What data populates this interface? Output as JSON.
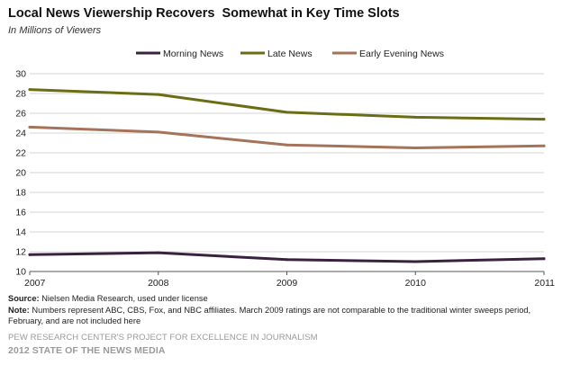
{
  "title": "Local News Viewership Recovers  Somewhat in Key Time Slots",
  "subtitle": "In Millions of Viewers",
  "notes": {
    "source_label": "Source:",
    "source_text": " Nielsen Media Research, used under license",
    "note_label": "Note:",
    "note_text": " Numbers represent ABC, CBS, Fox, and NBC affiliates. March 2009 ratings are not comparable to the traditional winter sweeps period, February, and are not included here"
  },
  "credits": {
    "line1": "PEW RESEARCH CENTER'S PROJECT FOR EXCELLENCE IN JOURNALISM",
    "line2": "2012 STATE OF THE NEWS MEDIA"
  },
  "chart_data": {
    "type": "line",
    "categories": [
      "2007",
      "2008",
      "2009",
      "2010",
      "2011"
    ],
    "ylim": [
      10,
      30
    ],
    "yticks": [
      "10",
      "12",
      "14",
      "16",
      "18",
      "20",
      "22",
      "24",
      "26",
      "28",
      "30"
    ],
    "grid": true,
    "legend_position": "top",
    "series": [
      {
        "name": "Morning News",
        "color": "#3b2140",
        "values": [
          11.7,
          11.9,
          11.2,
          11.0,
          11.3
        ]
      },
      {
        "name": "Late News",
        "color": "#6b6d14",
        "values": [
          28.4,
          27.9,
          26.1,
          25.6,
          25.4
        ]
      },
      {
        "name": "Early Evening News",
        "color": "#a5735a",
        "values": [
          24.6,
          24.1,
          22.8,
          22.5,
          22.7
        ]
      }
    ]
  }
}
